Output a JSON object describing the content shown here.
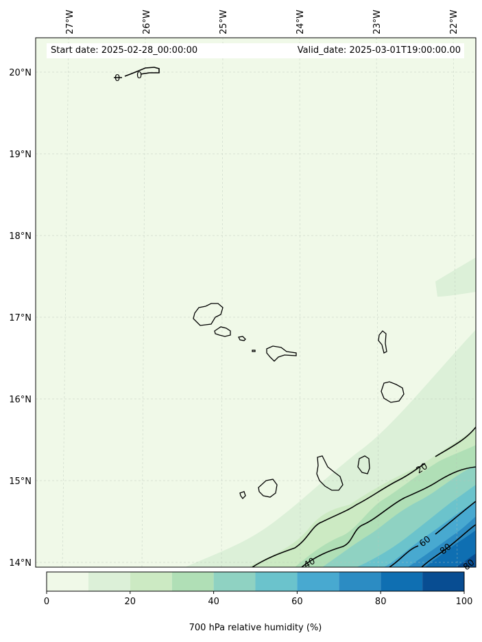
{
  "header": {
    "start_date": "Start date: 2025-02-28_00:00:00",
    "valid_date": "Valid_date: 2025-03-01T19:00:00.00"
  },
  "map": {
    "lon_ticks": [
      "27°W",
      "26°W",
      "25°W",
      "24°W",
      "23°W",
      "22°W"
    ],
    "lat_ticks": [
      "20°N",
      "19°N",
      "18°N",
      "17°N",
      "16°N",
      "15°N",
      "14°N"
    ],
    "contour_labels": [
      "0",
      "0",
      "20",
      "40",
      "60",
      "80",
      "80"
    ]
  },
  "colorbar": {
    "title": "700 hPa relative humidity (%)",
    "tick_labels": [
      "0",
      "20",
      "40",
      "60",
      "80",
      "100"
    ],
    "levels": [
      0,
      10,
      20,
      30,
      40,
      50,
      60,
      70,
      80,
      90,
      100
    ],
    "colors": [
      "#f0f9e8",
      "#dcf0d8",
      "#cceac3",
      "#b0dfb6",
      "#8fd2c2",
      "#6bc3cc",
      "#48a9d0",
      "#2c8cc3",
      "#0f6fb2",
      "#084d92"
    ]
  },
  "chart_data": {
    "type": "contour-map",
    "variable": "700 hPa relative humidity (%)",
    "units": "%",
    "range": [
      0,
      100
    ],
    "lon_range": [
      -27.3,
      -21.7
    ],
    "lat_range": [
      13.95,
      20.4
    ],
    "contour_levels": [
      0,
      20,
      40,
      60,
      80
    ]
  }
}
